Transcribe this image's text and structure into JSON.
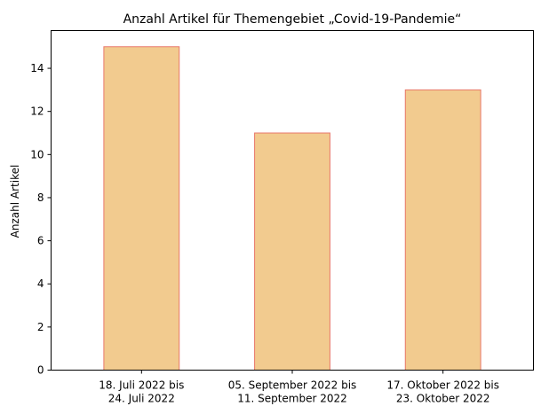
{
  "chart_data": {
    "type": "bar",
    "title": "Anzahl Artikel für Themengebiet „Covid-19-Pandemie“",
    "xlabel": "",
    "ylabel": "Anzahl Artikel",
    "categories": [
      [
        "18. Juli 2022 bis",
        "24. Juli 2022"
      ],
      [
        "05. September 2022 bis",
        "11. September 2022"
      ],
      [
        "17. Oktober 2022 bis",
        "23. Oktober 2022"
      ]
    ],
    "values": [
      15,
      11,
      13
    ],
    "ylim": [
      0,
      15.75
    ],
    "yticks": [
      0,
      2,
      4,
      6,
      8,
      10,
      12,
      14
    ],
    "grid": false,
    "legend": "none",
    "colors": {
      "bar_fill": "#f2cb8f",
      "bar_edge": "#e8786a"
    }
  }
}
